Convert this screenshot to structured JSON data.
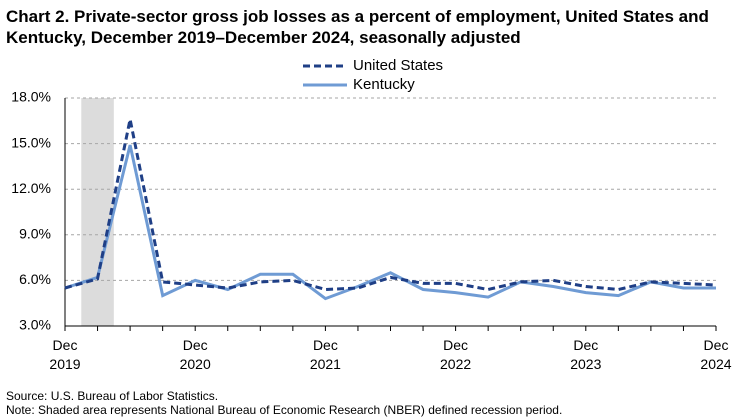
{
  "chart_data": {
    "type": "line",
    "title": "Chart 2. Private-sector gross job losses as a percent of employment, United States and Kentucky, December 2019–December 2024, seasonally adjusted",
    "x": [
      "Dec 2019",
      "Mar 2020",
      "Jun 2020",
      "Sep 2020",
      "Dec 2020",
      "Mar 2021",
      "Jun 2021",
      "Sep 2021",
      "Dec 2021",
      "Mar 2022",
      "Jun 2022",
      "Sep 2022",
      "Dec 2022",
      "Mar 2023",
      "Jun 2023",
      "Sep 2023",
      "Dec 2023",
      "Mar 2024",
      "Jun 2024",
      "Sep 2024",
      "Dec 2024"
    ],
    "x_tick_labels": [
      {
        "line1": "Dec",
        "line2": "2019"
      },
      {
        "line1": "Dec",
        "line2": "2020"
      },
      {
        "line1": "Dec",
        "line2": "2021"
      },
      {
        "line1": "Dec",
        "line2": "2022"
      },
      {
        "line1": "Dec",
        "line2": "2023"
      },
      {
        "line1": "Dec",
        "line2": "2024"
      }
    ],
    "y_ticks": [
      "3.0%",
      "6.0%",
      "9.0%",
      "12.0%",
      "15.0%",
      "18.0%"
    ],
    "ylim": [
      3,
      18
    ],
    "grid": "horizontal dashed",
    "legend_placement": "top-center",
    "recession_shading": {
      "from": "Dec 2019",
      "to": "Jun 2020",
      "color": "#dcdcdc"
    },
    "series": [
      {
        "name": "United States",
        "color": "#1f3f86",
        "style": "dashed",
        "values": [
          5.5,
          6.1,
          16.6,
          5.9,
          5.7,
          5.5,
          5.9,
          6.0,
          5.4,
          5.5,
          6.2,
          5.8,
          5.8,
          5.4,
          5.9,
          6.0,
          5.6,
          5.4,
          5.9,
          5.8,
          5.7
        ]
      },
      {
        "name": "Kentucky",
        "color": "#6f9bd4",
        "style": "solid",
        "values": [
          5.5,
          6.2,
          14.9,
          5.0,
          6.0,
          5.4,
          6.4,
          6.4,
          4.8,
          5.6,
          6.5,
          5.4,
          5.2,
          4.9,
          5.9,
          5.6,
          5.2,
          5.0,
          5.9,
          5.5,
          5.5
        ]
      }
    ]
  },
  "footnotes": {
    "source": "Source: U.S. Bureau of Labor Statistics.",
    "note": "Note: Shaded area represents National Bureau of Economic Research (NBER) defined  recession period."
  }
}
